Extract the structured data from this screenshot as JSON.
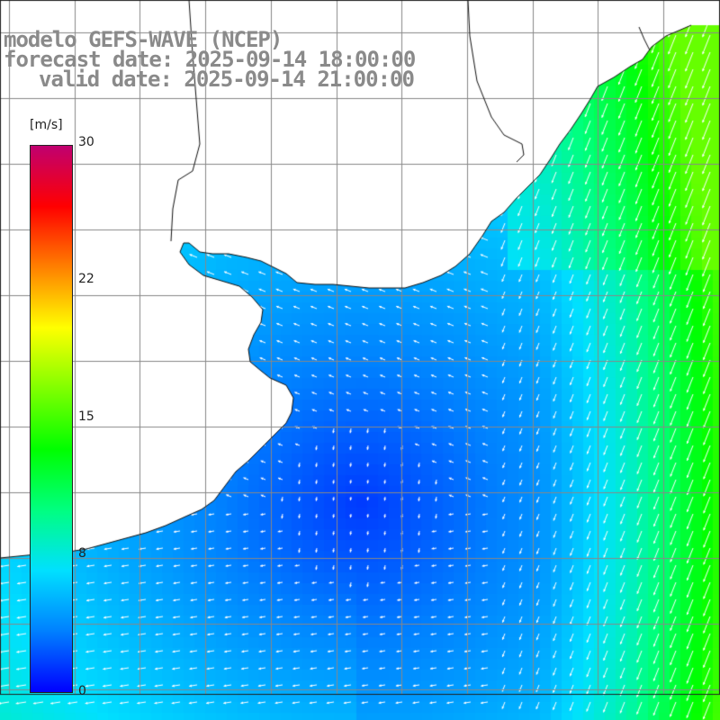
{
  "header": {
    "model": "modelo GEFS-WAVE (NCEP)",
    "forecast": "forecast date: 2025-09-14 18:00:00",
    "valid": "valid date: 2025-09-14 21:00:00"
  },
  "colorbar": {
    "unit": "[m/s]",
    "ticks": [
      "30",
      "22",
      "15",
      "8",
      "0"
    ],
    "min": 0,
    "max": 30,
    "colors": [
      "#0000ff",
      "#0080ff",
      "#00e0ff",
      "#00ff80",
      "#00ff00",
      "#80ff00",
      "#ffff00",
      "#ff8000",
      "#ff0000",
      "#c00070"
    ]
  },
  "map": {
    "land_color": "#ffffff",
    "coast_color": "#111111",
    "grid_color": "#888888",
    "grid_on": true,
    "field": "wind speed with direction arrows"
  }
}
